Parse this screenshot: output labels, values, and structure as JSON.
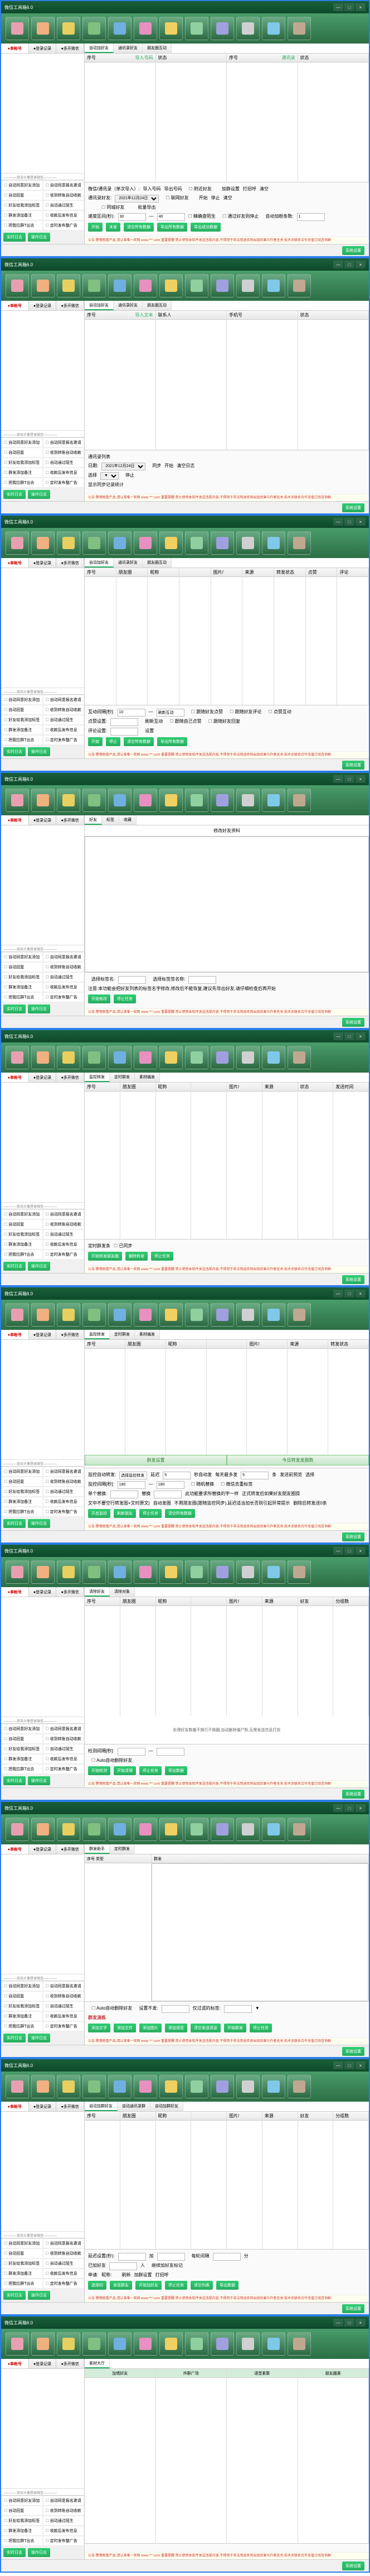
{
  "app": {
    "title": "微信工具箱6.0"
  },
  "win": {
    "min": "—",
    "max": "□",
    "close": "×"
  },
  "toolicons": [
    {
      "label": "",
      "color": "#e8a0b0"
    },
    {
      "label": "",
      "color": "#f0b080"
    },
    {
      "label": "",
      "color": "#e8d060"
    },
    {
      "label": "",
      "color": "#80c080"
    },
    {
      "label": "",
      "color": "#70b0e0"
    },
    {
      "label": "",
      "color": "#e890c0"
    },
    {
      "label": "",
      "color": "#f0d060"
    },
    {
      "label": "",
      "color": "#90d0a0"
    },
    {
      "label": "",
      "color": "#a0a0e0"
    },
    {
      "label": "",
      "color": "#d0d0d0"
    },
    {
      "label": "",
      "color": "#80c8e8"
    },
    {
      "label": "",
      "color": "#c0a890"
    }
  ],
  "leftTabs": [
    "●单帐号",
    "●登录记录",
    "●多开微信"
  ],
  "slog": "————双击头像登录微信————",
  "funcs": [
    "自动同意好友添加",
    "自动同意报名邀请",
    "自动回复",
    "收到转账自动收款",
    "好友给我添加标签",
    "自动通过陌生",
    "群发添加备注",
    "收款后发布信息",
    "把我拉群T出去",
    "定时发布整广告"
  ],
  "leftBtns": [
    "实时日志",
    "操作日志"
  ],
  "bottomNotice": "公告:警惕假冒产品,请认准唯一官网 www.***.com 重要提醒:禁止使用本软件发送违规内容,不得用于非法用途否则出现后果与作者无关.技术员联系合作充值订阅咨询群",
  "bottomBtn": "系统设置",
  "shots": [
    {
      "subtabs": [
        "自动加好友",
        "通讯录好友",
        "朋友圈互动"
      ],
      "cols": [
        {
          "h": "序号",
          "b": "导入号码"
        },
        {
          "h": "状态",
          "b": ""
        },
        {
          "h": "序号",
          "b": "通讯录"
        },
        {
          "h": "状态",
          "b": ""
        }
      ],
      "panel": {
        "rows": [
          [
            "微信/通讯录（单次导入）:",
            "导入号码",
            "导出号码",
            "",
            "☐附近好友",
            "",
            "加群设置",
            "打招呼",
            "清空"
          ],
          [
            "通讯录好友:",
            "<sel>2021年12月24日</sel>",
            "",
            "☐联网好友",
            "",
            "开始",
            "停止",
            "清空"
          ],
          [
            "",
            "",
            "",
            "",
            "☐同城好友",
            "",
            "",
            "批量导出"
          ],
          [
            "速度区间(秒):",
            "<inp>30</inp>",
            "—",
            "<inp>40</inp>",
            "☐精确查陌生",
            "☐通过好友则停止",
            "自动加粉条数:",
            "<inp>1</inp>"
          ],
          [
            "□开始",
            "□末发",
            "□清空所有数据",
            "□导出所有数据",
            "□导出成功数据"
          ]
        ]
      }
    },
    {
      "subtabs": [
        "自动加好友",
        "通讯录好友",
        "朋友圈互动"
      ],
      "cols": [
        {
          "h": "序号",
          "b": "导入文本"
        },
        {
          "h": "联系人",
          "b": ""
        },
        {
          "h": "手机号",
          "b": ""
        },
        {
          "h": "状态",
          "b": ""
        }
      ],
      "panel": {
        "rows": [
          [
            "通讯录列表"
          ],
          [
            "日期:",
            "<sel>2021年12月24日</sel>",
            "",
            "同步",
            "开始",
            "清空日志"
          ],
          [
            "选择",
            "<sel>▼</sel>",
            "",
            "停止"
          ],
          [
            "显示同步记录统计"
          ]
        ]
      }
    },
    {
      "subtabs": [
        "自动加好友",
        "通讯录好友",
        "朋友圈互动"
      ],
      "cols": [
        {
          "h": "序号",
          "b": ""
        },
        {
          "h": "朋友圈",
          "b": ""
        },
        {
          "h": "昵称",
          "b": ""
        },
        {
          "h": "",
          "b": ""
        },
        {
          "h": "图片/",
          "b": ""
        },
        {
          "h": "来源",
          "b": ""
        },
        {
          "h": "转发状态",
          "b": ""
        },
        {
          "h": "点赞",
          "b": ""
        },
        {
          "h": "评论",
          "b": ""
        }
      ],
      "panel": {
        "rows": [
          [
            "互动间隔[秒]:",
            "<inp>10</inp>",
            "—",
            "<inp>刷新互动</inp>",
            "",
            "☐跟随好友点赞",
            "☐跟随好友评论",
            "☐点赞互动"
          ],
          [
            "点赞设置:",
            "<inp></inp>",
            "",
            "刷新互动",
            "",
            "☐跟随自己点赞",
            "☐跟随好友回复"
          ],
          [
            "评论设置:",
            "<inp></inp>",
            "",
            "设置"
          ],
          [
            "□开始",
            "□停止",
            "□清空所有数据",
            "□导出所有数据"
          ]
        ]
      }
    },
    {
      "subtabs": [
        "好友",
        "标签",
        "收藏"
      ],
      "cols4": true,
      "header": "修改好友资料",
      "panel": {
        "rows": [
          [
            "",
            "选择标签名:",
            "<inp></inp>",
            "",
            "选择标签签名称:",
            "<inp></inp>",
            ""
          ],
          [
            "注意:本功能会把好友列表的标签名字修改,修改后不能恢复,建议先导出好友,请仔细检查后再开始"
          ],
          [
            "□开始修改",
            "□停止任务"
          ]
        ]
      }
    },
    {
      "subtabs": [
        "监控转发",
        "定时群发",
        "素材编发"
      ],
      "cols": [
        {
          "h": "序号",
          "b": ""
        },
        {
          "h": "朋友圈",
          "b": ""
        },
        {
          "h": "昵称",
          "b": ""
        },
        {
          "h": "",
          "b": ""
        },
        {
          "h": "图片/",
          "b": ""
        },
        {
          "h": "来源",
          "b": ""
        },
        {
          "h": "状态",
          "b": ""
        },
        {
          "h": "发送时间",
          "b": ""
        }
      ],
      "panel": {
        "rows": [
          [
            "定时群发条",
            "☐已同步"
          ],
          [
            "□开始转发朋友圈",
            "□删除转发",
            "□停止任务"
          ]
        ]
      }
    },
    {
      "subtabs": [
        "监控转发",
        "定时群发",
        "素材编发"
      ],
      "cols": [
        {
          "h": "序号",
          "b": ""
        },
        {
          "h": "朋友圈",
          "b": ""
        },
        {
          "h": "昵称",
          "b": ""
        },
        {
          "h": "",
          "b": ""
        },
        {
          "h": "图片/",
          "b": ""
        },
        {
          "h": "来源",
          "b": ""
        },
        {
          "h": "转发状态",
          "b": ""
        }
      ],
      "banner1": "群发设置",
      "banner2": "今日转发发圈数",
      "panel": {
        "rows": [
          [
            "监控自动转发:",
            "<inp>选择监控转发</inp>",
            "延迟",
            "<inp>5</inp>",
            "秒自动发",
            "每天最多发",
            "<inp>5</inp>",
            "条",
            "发送前预览",
            "选择"
          ],
          [
            "监控间隔[秒]:",
            "<inp>180</inp>",
            "—",
            "<inp>180</inp>",
            "",
            "☐随机替换",
            "☐微信去重标签"
          ],
          [
            "单个替换:",
            "<inp></inp>",
            "替换",
            "<inp></inp>",
            "此功能要求所替换的字一样",
            "正式转发后如果好友朋友圈提"
          ],
          [
            "文中不要空行转发图+文时原文|",
            "自动发圈",
            "不用朋友圈(跟随监控同步),延迟适当加长否则引起异常提示",
            "删除后转发送0条"
          ],
          [
            "□开启监控",
            "□刷新朋友",
            "□停止任务",
            "□清空所有数据"
          ]
        ]
      }
    },
    {
      "subtabs": [
        "清除好友",
        "清除对象"
      ],
      "cols": [
        {
          "h": "序号",
          "b": ""
        },
        {
          "h": "朋友圈",
          "b": ""
        },
        {
          "h": "昵称",
          "b": ""
        },
        {
          "h": "",
          "b": ""
        },
        {
          "h": "图片/",
          "b": ""
        },
        {
          "h": "来源",
          "b": ""
        },
        {
          "h": "好友",
          "b": ""
        },
        {
          "h": "分组数",
          "b": ""
        }
      ],
      "centerText": "处理好友数量不换行不换圈,自动删除僵尸粉,无需发送信息打扰",
      "panel": {
        "rows": [
          [
            "检测间隔[秒]:",
            "<inp></inp>",
            "—",
            "<inp></inp>"
          ],
          [
            "",
            "☐Auto自动删除好友"
          ],
          [
            "□开始检测",
            "□开始清理",
            "□停止任务",
            "□导出数据"
          ]
        ]
      }
    },
    {
      "subtabs": [
        "群发助手",
        "定时群发"
      ],
      "twopane": true,
      "leftPaneHead": "序号  类型",
      "rightPaneHead": "群发",
      "panel": {
        "rows": [
          [
            "",
            "☐Auto自动删除好友",
            "设置不发:",
            "<inp></inp>",
            "仅过滤的标签:",
            "<inp></inp>",
            "▼"
          ],
          [
            "■群发演练"
          ],
          [
            "□添加文字",
            "□添加文件",
            "□添加图片",
            "□添加语音",
            "□清空发送清息",
            "□开始群发",
            "□停止任务"
          ]
        ]
      }
    },
    {
      "subtabs": [
        "自动加群好友",
        "自动通讯录群",
        "自动加群好友"
      ],
      "cols": [
        {
          "h": "序号",
          "b": ""
        },
        {
          "h": "朋友圈",
          "b": ""
        },
        {
          "h": "昵称",
          "b": ""
        },
        {
          "h": "",
          "b": ""
        },
        {
          "h": "图片/",
          "b": ""
        },
        {
          "h": "来源",
          "b": ""
        },
        {
          "h": "好友",
          "b": ""
        },
        {
          "h": "分组数",
          "b": ""
        }
      ],
      "panel": {
        "rows": [
          [
            "延迟设置(秒):",
            "<inp></inp>",
            "加",
            "<inp></inp>",
            "",
            "每轮间隔",
            "<inp></inp>",
            "分"
          ],
          [
            "已加好友",
            "<inp></inp>",
            "人",
            "",
            "继续加好友标记"
          ],
          [
            "申请:",
            "昵称:",
            "",
            "",
            "刷新",
            "加群设置",
            "打招呼"
          ],
          [
            "□选择的",
            "□发现群友",
            "□开始加好友",
            "□停止任务",
            "□清空列表",
            "□导出数据"
          ]
        ]
      }
    },
    {
      "subtabs": [
        "素材大厅"
      ],
      "bigcols": [
        "加墙好友",
        "炸群广场",
        "语音素集",
        "朋友圈素"
      ],
      "panel": {
        "rows": [
          [
            ""
          ]
        ]
      }
    }
  ]
}
